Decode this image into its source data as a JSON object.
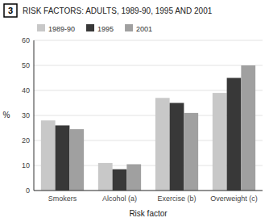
{
  "chart_data": {
    "type": "bar",
    "title": "RISK FACTORS: ADULTS, 1989-90, 1995 AND 2001",
    "annotations": [
      "3"
    ],
    "categories": [
      "Smokers",
      "Alcohol (a)",
      "Exercise (b)",
      "Overweight (c)"
    ],
    "series": [
      {
        "name": "1989-90",
        "color": "#c8c8c8",
        "values": [
          28,
          11,
          37,
          39
        ]
      },
      {
        "name": "1995",
        "color": "#383838",
        "values": [
          26,
          8.5,
          35,
          45
        ]
      },
      {
        "name": "2001",
        "color": "#a0a0a0",
        "values": [
          24.5,
          10.5,
          31,
          50
        ]
      }
    ],
    "x_label": "Risk factor",
    "y_label": "%",
    "ylim": [
      0,
      60
    ],
    "yticks": [
      0,
      10,
      20,
      30,
      40,
      50,
      60
    ],
    "grid": true,
    "legend": "upper left"
  }
}
